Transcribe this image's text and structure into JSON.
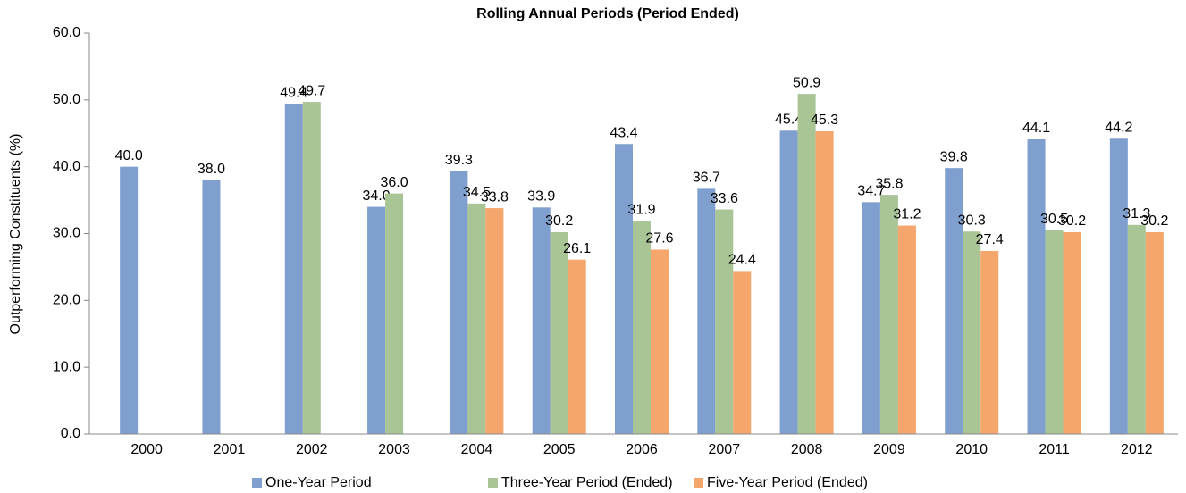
{
  "chart_data": {
    "type": "bar",
    "title": "Rolling Annual Periods (Period Ended)",
    "y_label": "Outperforming Constituents (%)",
    "categories": [
      "2000",
      "2001",
      "2002",
      "2003",
      "2004",
      "2005",
      "2006",
      "2007",
      "2008",
      "2009",
      "2010",
      "2011",
      "2012"
    ],
    "series": [
      {
        "name": "One-Year Period",
        "color": "#7f9fcf",
        "values": [
          40,
          38,
          49.4,
          34,
          39.3,
          33.9,
          43.4,
          36.7,
          45.4,
          34.7,
          39.8,
          44.1,
          44.2
        ],
        "value_labels": [
          "40.0",
          "38.0",
          "49.4",
          "34.0",
          "39.3",
          "33.9",
          "43.4",
          "36.7",
          "45.4",
          "34.7",
          "39.8",
          "44.1",
          "44.2"
        ]
      },
      {
        "name": "Three-Year Period (Ended)",
        "color": "#a9c495",
        "values": [
          null,
          null,
          49.7,
          36,
          34.5,
          30.2,
          31.9,
          33.6,
          50.9,
          35.8,
          30.3,
          30.5,
          31.3
        ],
        "value_labels": [
          null,
          null,
          "49.7",
          "36.0",
          "34.5",
          "30.2",
          "31.9",
          "33.6",
          "50.9",
          "35.8",
          "30.3",
          "30.5",
          "31.3"
        ]
      },
      {
        "name": "Five-Year Period (Ended)",
        "color": "#f5a66c",
        "values": [
          null,
          null,
          null,
          null,
          33.8,
          26.1,
          27.6,
          24.4,
          45.3,
          31.2,
          27.4,
          30.2,
          30.2
        ],
        "value_labels": [
          null,
          null,
          null,
          null,
          "33.8",
          "26.1",
          "27.6",
          "24.4",
          "45.3",
          "31.2",
          "27.4",
          "30.2",
          "30.2"
        ]
      }
    ],
    "ylim": [
      0,
      60
    ],
    "yticks": [
      {
        "value": 0,
        "label": "0.0"
      },
      {
        "value": 10,
        "label": "10.0"
      },
      {
        "value": 20,
        "label": "20.0"
      },
      {
        "value": 30,
        "label": "30.0"
      },
      {
        "value": 40,
        "label": "40.0"
      },
      {
        "value": 50,
        "label": "50.0"
      },
      {
        "value": 60,
        "label": "60.0"
      }
    ],
    "grid": false,
    "legend": "bottom"
  }
}
